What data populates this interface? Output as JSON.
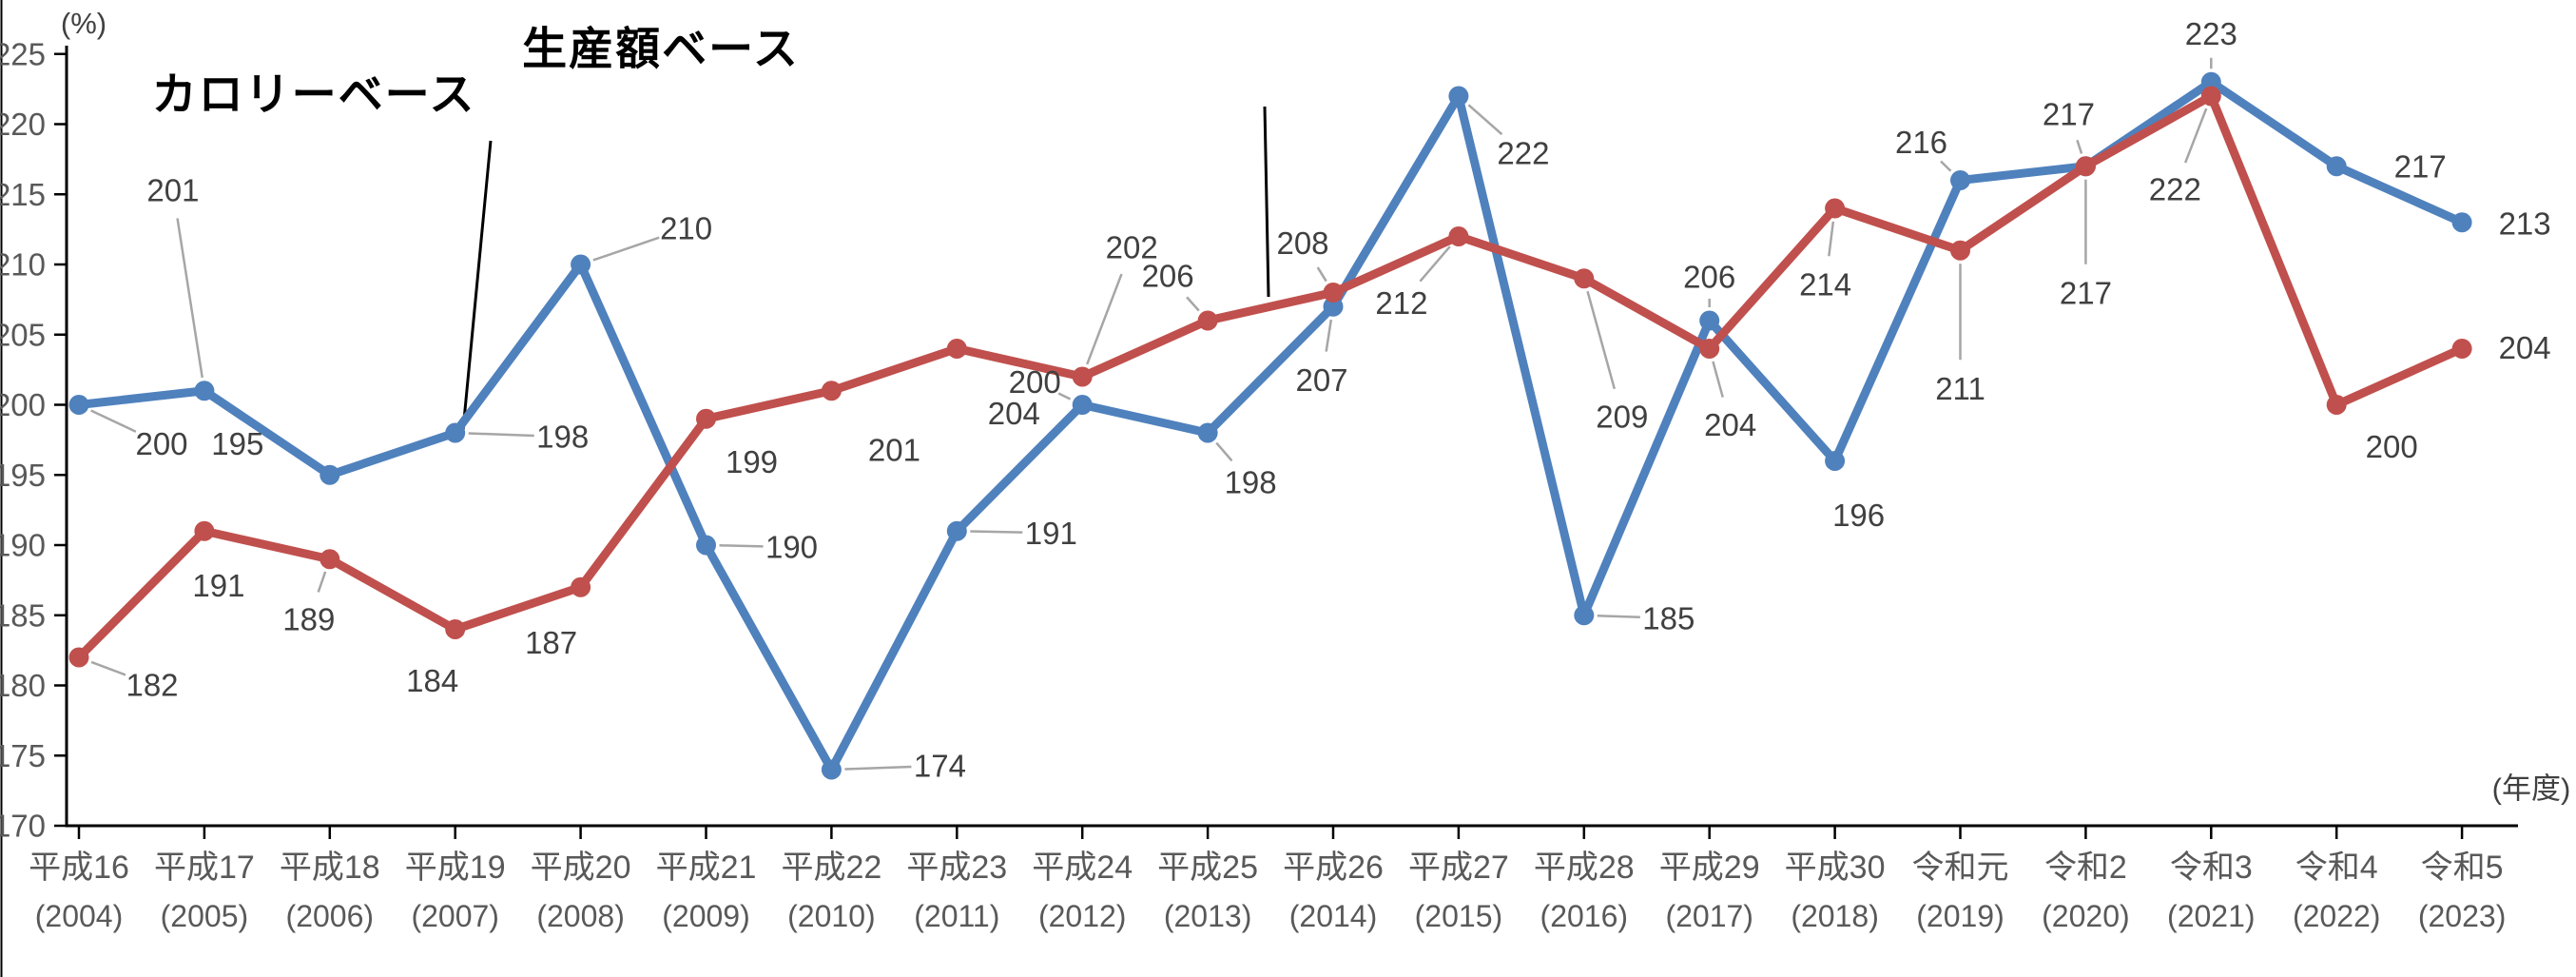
{
  "chart_data": {
    "type": "line",
    "title": "",
    "categories_era": [
      "平成16",
      "平成17",
      "平成18",
      "平成19",
      "平成20",
      "平成21",
      "平成22",
      "平成23",
      "平成24",
      "平成25",
      "平成26",
      "平成27",
      "平成28",
      "平成29",
      "平成30",
      "令和元",
      "令和2",
      "令和3",
      "令和4",
      "令和5"
    ],
    "categories_year": [
      "(2004)",
      "(2005)",
      "(2006)",
      "(2007)",
      "(2008)",
      "(2009)",
      "(2010)",
      "(2011)",
      "(2012)",
      "(2013)",
      "(2014)",
      "(2015)",
      "(2016)",
      "(2017)",
      "(2018)",
      "(2019)",
      "(2020)",
      "(2021)",
      "(2022)",
      "(2023)"
    ],
    "series": [
      {
        "name": "カロリーベース",
        "color": "#4f81bd",
        "values": [
          200,
          201,
          195,
          198,
          210,
          190,
          174,
          191,
          200,
          198,
          207,
          222,
          185,
          206,
          196,
          216,
          217,
          223,
          217,
          213
        ]
      },
      {
        "name": "生産額ベース",
        "color": "#c0504d",
        "values": [
          182,
          191,
          189,
          184,
          187,
          199,
          201,
          204,
          202,
          206,
          208,
          212,
          209,
          204,
          214,
          211,
          217,
          222,
          200,
          204
        ]
      }
    ],
    "y_axis": {
      "unit": "(%)",
      "min": 170,
      "max": 225,
      "step": 5
    },
    "x_axis": {
      "unit": "(年度)"
    },
    "grid": "off",
    "legend": "inline-annotations",
    "label_color": "#404040",
    "tick_label_color": "#595959",
    "leader_color": "#a6a6a6",
    "axis_color": "#000000",
    "layout": {
      "label_offsets": [
        [
          [
            87,
            41,
            1
          ],
          [
            -33,
            -211,
            1
          ],
          [
            -97,
            -33,
            0
          ],
          [
            113,
            4,
            1
          ],
          [
            111,
            -38,
            1
          ],
          [
            90,
            2,
            1
          ],
          [
            114,
            -4,
            1
          ],
          [
            99,
            2,
            1
          ],
          [
            -50,
            -24,
            1
          ],
          [
            45,
            52,
            1
          ],
          [
            -12,
            77,
            1
          ],
          [
            68,
            60,
            1
          ],
          [
            89,
            3,
            1
          ],
          [
            0,
            -46,
            1
          ],
          [
            25,
            57,
            0
          ],
          [
            -41,
            -40,
            1
          ],
          [
            -18,
            -55,
            1
          ],
          [
            0,
            -51,
            1
          ],
          [
            88,
            0,
            0
          ],
          [
            66,
            1,
            0
          ]
        ],
        [
          [
            77,
            29,
            1
          ],
          [
            15,
            57,
            0
          ],
          [
            -22,
            63,
            1
          ],
          [
            -24,
            54,
            0
          ],
          [
            -31,
            58,
            0
          ],
          [
            48,
            45,
            0
          ],
          [
            66,
            62,
            0
          ],
          [
            60,
            68,
            0
          ],
          [
            52,
            -136,
            1
          ],
          [
            -42,
            -47,
            1
          ],
          [
            -32,
            -52,
            1
          ],
          [
            -60,
            70,
            1
          ],
          [
            40,
            145,
            1
          ],
          [
            22,
            80,
            1
          ],
          [
            -10,
            80,
            1
          ],
          [
            0,
            145,
            1
          ],
          [
            0,
            133,
            1
          ],
          [
            -38,
            98,
            1
          ],
          [
            58,
            44,
            0
          ],
          [
            66,
            -1,
            0
          ]
        ]
      ],
      "annotations": [
        {
          "x": 330,
          "y": 95,
          "leader": [
            516,
            148,
            487,
            452
          ]
        },
        {
          "x": 695,
          "y": 47,
          "leader": [
            1330,
            112,
            1334,
            312
          ]
        }
      ]
    }
  }
}
